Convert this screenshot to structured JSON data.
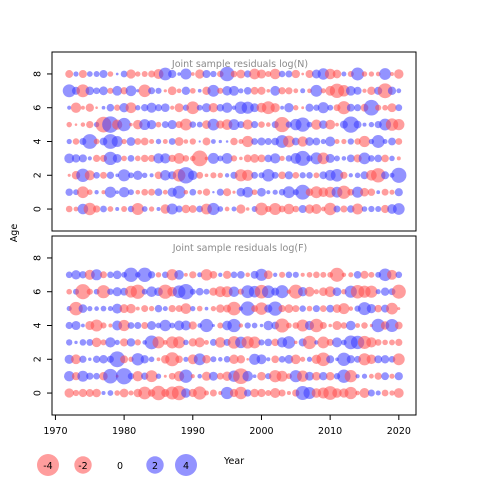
{
  "chart_data": {
    "type": "scatter",
    "ylabel": "Age",
    "xlabel": "Year",
    "xlim": [
      1969.5,
      2022.5
    ],
    "xticks": [
      1970,
      1980,
      1990,
      2000,
      2010,
      2020
    ],
    "yticks": [
      0,
      2,
      4,
      6,
      8
    ],
    "years_range": [
      1972,
      2020
    ],
    "ages": [
      0,
      1,
      2,
      3,
      4,
      5,
      6,
      7,
      8
    ],
    "colors": {
      "positive": "#3b3bff",
      "negative": "#ff4d4d"
    },
    "panels": [
      {
        "title": "Joint sample residuals log(N)",
        "ylim": [
          -1.3,
          9.3
        ],
        "seed": 11
      },
      {
        "title": "Joint sample residuals log(F)",
        "ylim": [
          -1.3,
          9.3
        ],
        "seed": 37,
        "max_age": 7
      }
    ],
    "legend": {
      "title": "Year",
      "entries": [
        {
          "label": "-4",
          "value": -4
        },
        {
          "label": "-2",
          "value": -2
        },
        {
          "label": "0",
          "value": 0
        },
        {
          "label": "2",
          "value": 2
        },
        {
          "label": "4",
          "value": 4
        }
      ]
    }
  }
}
